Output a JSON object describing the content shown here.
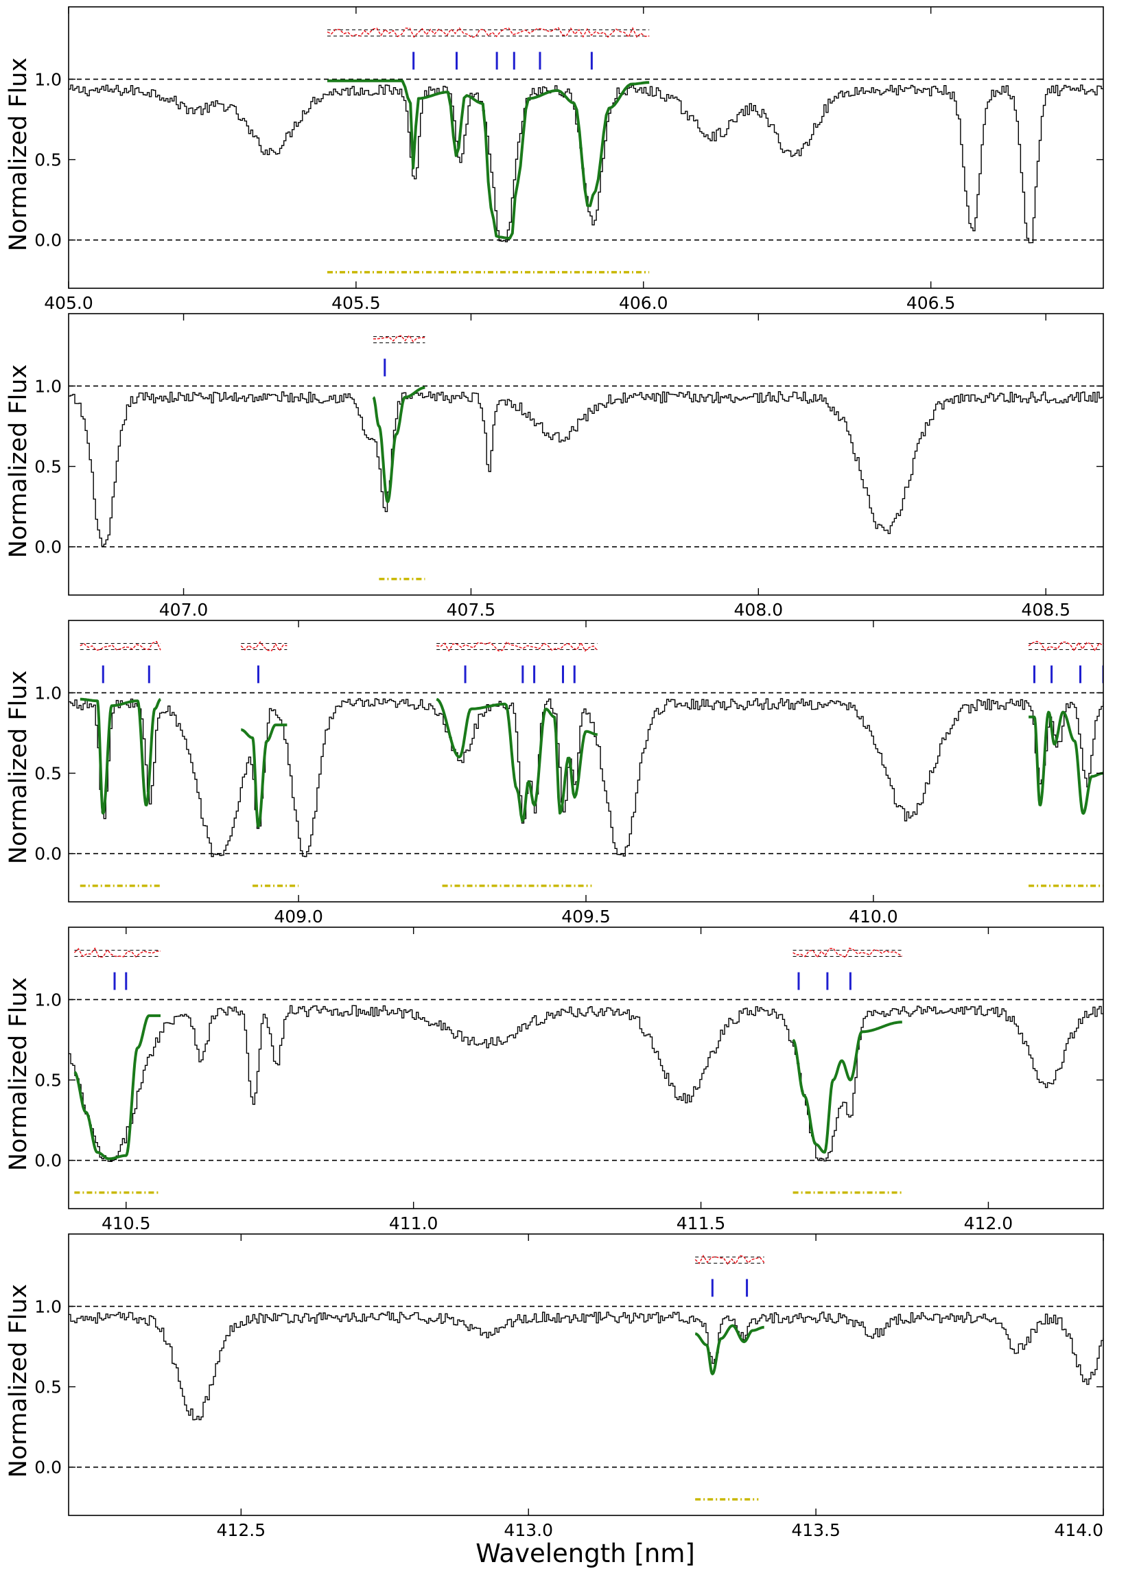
{
  "figure": {
    "x_axis_title": "Wavelength [nm]",
    "y_axis_title": "Normalized Flux"
  },
  "colors": {
    "spectrum": "#000000",
    "model": "#1a7a1a",
    "residual": "#e8151b",
    "line_marker": "#1f1fd0",
    "fit_region": "#c9b800",
    "reference": "#000000"
  },
  "chart_data": [
    {
      "type": "line",
      "xlim": [
        405.0,
        406.8
      ],
      "ylim": [
        -0.3,
        1.45
      ],
      "xticks": [
        "405.0",
        "405.5",
        "406.0",
        "406.5"
      ],
      "yticks": [
        "0.0",
        "0.5",
        "1.0"
      ],
      "reference_lines": [
        0.0,
        1.0
      ],
      "absorption_features": [
        {
          "center": 405.22,
          "depth": 0.12,
          "width": 0.035
        },
        {
          "center": 405.35,
          "depth": 0.38,
          "width": 0.04
        },
        {
          "center": 405.6,
          "depth": 0.58,
          "width": 0.007
        },
        {
          "center": 405.68,
          "depth": 0.48,
          "width": 0.008
        },
        {
          "center": 405.755,
          "depth": 0.99,
          "width": 0.018
        },
        {
          "center": 405.91,
          "depth": 0.82,
          "width": 0.016
        },
        {
          "center": 406.12,
          "depth": 0.28,
          "width": 0.04
        },
        {
          "center": 406.26,
          "depth": 0.4,
          "width": 0.035
        },
        {
          "center": 406.57,
          "depth": 0.88,
          "width": 0.013
        },
        {
          "center": 406.67,
          "depth": 0.97,
          "width": 0.012
        }
      ],
      "line_markers": [
        405.6,
        405.675,
        405.745,
        405.775,
        405.82,
        405.91
      ],
      "fit_region": [
        405.45,
        406.01
      ],
      "series": [
        {
          "kind": "model",
          "range": [
            405.45,
            406.01
          ],
          "points": [
            [
              405.45,
              0.99
            ],
            [
              405.58,
              0.99
            ],
            [
              405.595,
              0.85
            ],
            [
              405.6,
              0.43
            ],
            [
              405.607,
              0.88
            ],
            [
              405.66,
              0.92
            ],
            [
              405.675,
              0.52
            ],
            [
              405.69,
              0.9
            ],
            [
              405.72,
              0.85
            ],
            [
              405.735,
              0.2
            ],
            [
              405.745,
              0.02
            ],
            [
              405.77,
              0.01
            ],
            [
              405.78,
              0.35
            ],
            [
              405.8,
              0.88
            ],
            [
              405.85,
              0.93
            ],
            [
              405.88,
              0.85
            ],
            [
              405.905,
              0.2
            ],
            [
              405.915,
              0.3
            ],
            [
              405.94,
              0.82
            ],
            [
              405.98,
              0.97
            ],
            [
              406.01,
              0.98
            ]
          ]
        }
      ]
    },
    {
      "type": "line",
      "xlim": [
        406.8,
        408.6
      ],
      "ylim": [
        -0.3,
        1.45
      ],
      "xticks": [
        "407.0",
        "407.5",
        "408.0",
        "408.5"
      ],
      "yticks": [
        "0.0",
        "0.5",
        "1.0"
      ],
      "reference_lines": [
        0.0,
        1.0
      ],
      "absorption_features": [
        {
          "center": 406.86,
          "depth": 0.95,
          "width": 0.018
        },
        {
          "center": 407.32,
          "depth": 0.25,
          "width": 0.012
        },
        {
          "center": 407.35,
          "depth": 0.68,
          "width": 0.01
        },
        {
          "center": 407.53,
          "depth": 0.45,
          "width": 0.006
        },
        {
          "center": 407.65,
          "depth": 0.25,
          "width": 0.04
        },
        {
          "center": 408.22,
          "depth": 0.85,
          "width": 0.04
        }
      ],
      "line_markers": [
        407.35
      ],
      "fit_region": [
        407.34,
        407.42
      ],
      "series": [
        {
          "kind": "model",
          "range": [
            407.33,
            407.42
          ],
          "points": [
            [
              407.33,
              0.93
            ],
            [
              407.34,
              0.75
            ],
            [
              407.355,
              0.28
            ],
            [
              407.37,
              0.7
            ],
            [
              407.385,
              0.93
            ],
            [
              407.42,
              0.99
            ]
          ]
        }
      ]
    },
    {
      "type": "line",
      "xlim": [
        408.6,
        410.4
      ],
      "ylim": [
        -0.3,
        1.45
      ],
      "xticks": [
        "409.0",
        "409.5",
        "410.0"
      ],
      "yticks": [
        "0.0",
        "0.5",
        "1.0"
      ],
      "reference_lines": [
        0.0,
        1.0
      ],
      "absorption_features": [
        {
          "center": 408.66,
          "depth": 0.72,
          "width": 0.007
        },
        {
          "center": 408.74,
          "depth": 0.62,
          "width": 0.007
        },
        {
          "center": 408.86,
          "depth": 0.97,
          "width": 0.035
        },
        {
          "center": 408.93,
          "depth": 0.65,
          "width": 0.007
        },
        {
          "center": 409.01,
          "depth": 0.97,
          "width": 0.02
        },
        {
          "center": 409.28,
          "depth": 0.35,
          "width": 0.02
        },
        {
          "center": 409.39,
          "depth": 0.75,
          "width": 0.007
        },
        {
          "center": 409.41,
          "depth": 0.65,
          "width": 0.006
        },
        {
          "center": 409.46,
          "depth": 0.65,
          "width": 0.007
        },
        {
          "center": 409.48,
          "depth": 0.5,
          "width": 0.006
        },
        {
          "center": 409.56,
          "depth": 0.97,
          "width": 0.025
        },
        {
          "center": 410.06,
          "depth": 0.7,
          "width": 0.04
        },
        {
          "center": 410.29,
          "depth": 0.5,
          "width": 0.008
        },
        {
          "center": 410.32,
          "depth": 0.25,
          "width": 0.007
        },
        {
          "center": 410.37,
          "depth": 0.5,
          "width": 0.009
        }
      ],
      "line_markers": [
        408.66,
        408.74,
        408.93,
        409.29,
        409.39,
        409.41,
        409.46,
        409.48,
        410.28,
        410.31,
        410.36,
        410.4
      ],
      "fit_region": [
        408.62,
        408.76
      ],
      "extra_fit_regions": [
        [
          408.92,
          409.0
        ],
        [
          409.25,
          409.51
        ],
        [
          410.27,
          410.4
        ]
      ],
      "series": [
        {
          "kind": "model",
          "range": [
            408.62,
            408.76
          ],
          "points": [
            [
              408.62,
              0.96
            ],
            [
              408.65,
              0.95
            ],
            [
              408.66,
              0.25
            ],
            [
              408.675,
              0.92
            ],
            [
              408.72,
              0.95
            ],
            [
              408.735,
              0.3
            ],
            [
              408.75,
              0.9
            ],
            [
              408.76,
              0.96
            ]
          ]
        },
        {
          "kind": "model",
          "range": [
            408.9,
            408.98
          ],
          "points": [
            [
              408.9,
              0.77
            ],
            [
              408.92,
              0.72
            ],
            [
              408.93,
              0.17
            ],
            [
              408.945,
              0.7
            ],
            [
              408.96,
              0.8
            ],
            [
              408.98,
              0.8
            ]
          ]
        },
        {
          "kind": "model",
          "range": [
            409.24,
            409.52
          ],
          "points": [
            [
              409.24,
              0.96
            ],
            [
              409.28,
              0.6
            ],
            [
              409.3,
              0.9
            ],
            [
              409.36,
              0.93
            ],
            [
              409.38,
              0.4
            ],
            [
              409.39,
              0.2
            ],
            [
              409.4,
              0.45
            ],
            [
              409.41,
              0.3
            ],
            [
              409.43,
              0.9
            ],
            [
              409.445,
              0.85
            ],
            [
              409.455,
              0.25
            ],
            [
              409.47,
              0.6
            ],
            [
              409.48,
              0.35
            ],
            [
              409.5,
              0.76
            ],
            [
              409.52,
              0.74
            ]
          ]
        },
        {
          "kind": "model",
          "range": [
            410.27,
            410.4
          ],
          "points": [
            [
              410.27,
              0.85
            ],
            [
              410.28,
              0.85
            ],
            [
              410.29,
              0.3
            ],
            [
              410.305,
              0.88
            ],
            [
              410.315,
              0.68
            ],
            [
              410.33,
              0.88
            ],
            [
              410.35,
              0.7
            ],
            [
              410.365,
              0.25
            ],
            [
              410.38,
              0.48
            ],
            [
              410.4,
              0.5
            ]
          ]
        }
      ]
    },
    {
      "type": "line",
      "xlim": [
        410.4,
        412.2
      ],
      "ylim": [
        -0.3,
        1.45
      ],
      "xticks": [
        "410.5",
        "411.0",
        "411.5",
        "412.0"
      ],
      "yticks": [
        "0.0",
        "0.5",
        "1.0"
      ],
      "reference_lines": [
        0.0,
        1.0
      ],
      "absorption_features": [
        {
          "center": 410.47,
          "depth": 0.95,
          "width": 0.045
        },
        {
          "center": 410.63,
          "depth": 0.3,
          "width": 0.01
        },
        {
          "center": 410.72,
          "depth": 0.6,
          "width": 0.008
        },
        {
          "center": 410.76,
          "depth": 0.35,
          "width": 0.008
        },
        {
          "center": 411.12,
          "depth": 0.2,
          "width": 0.06
        },
        {
          "center": 411.47,
          "depth": 0.55,
          "width": 0.04
        },
        {
          "center": 411.71,
          "depth": 0.95,
          "width": 0.03
        },
        {
          "center": 411.76,
          "depth": 0.4,
          "width": 0.008
        },
        {
          "center": 412.1,
          "depth": 0.45,
          "width": 0.03
        }
      ],
      "line_markers": [
        410.48,
        410.5,
        411.67,
        411.72,
        411.76
      ],
      "fit_region": [
        410.41,
        410.56
      ],
      "extra_fit_regions": [
        [
          411.66,
          411.85
        ]
      ],
      "series": [
        {
          "kind": "model",
          "range": [
            410.41,
            410.56
          ],
          "points": [
            [
              410.41,
              0.55
            ],
            [
              410.43,
              0.3
            ],
            [
              410.45,
              0.05
            ],
            [
              410.47,
              0.01
            ],
            [
              410.5,
              0.03
            ],
            [
              410.52,
              0.7
            ],
            [
              410.54,
              0.9
            ],
            [
              410.56,
              0.9
            ]
          ]
        },
        {
          "kind": "model",
          "range": [
            411.66,
            411.85
          ],
          "points": [
            [
              411.66,
              0.75
            ],
            [
              411.68,
              0.4
            ],
            [
              411.7,
              0.1
            ],
            [
              411.715,
              0.05
            ],
            [
              411.73,
              0.5
            ],
            [
              411.745,
              0.62
            ],
            [
              411.76,
              0.5
            ],
            [
              411.78,
              0.8
            ],
            [
              411.85,
              0.86
            ]
          ]
        }
      ]
    },
    {
      "type": "line",
      "xlim": [
        412.2,
        414.0
      ],
      "ylim": [
        -0.3,
        1.45
      ],
      "xticks": [
        "412.5",
        "413.0",
        "413.5",
        "414.0"
      ],
      "yticks": [
        "0.0",
        "0.5",
        "1.0"
      ],
      "reference_lines": [
        0.0,
        1.0
      ],
      "absorption_features": [
        {
          "center": 412.42,
          "depth": 0.62,
          "width": 0.03
        },
        {
          "center": 412.92,
          "depth": 0.1,
          "width": 0.03
        },
        {
          "center": 413.32,
          "depth": 0.3,
          "width": 0.008
        },
        {
          "center": 413.37,
          "depth": 0.12,
          "width": 0.01
        },
        {
          "center": 413.6,
          "depth": 0.1,
          "width": 0.02
        },
        {
          "center": 413.85,
          "depth": 0.2,
          "width": 0.02
        },
        {
          "center": 413.97,
          "depth": 0.4,
          "width": 0.02
        }
      ],
      "line_markers": [
        413.32,
        413.38
      ],
      "fit_region": [
        413.29,
        413.4
      ],
      "series": [
        {
          "kind": "model",
          "range": [
            413.29,
            413.41
          ],
          "points": [
            [
              413.29,
              0.83
            ],
            [
              413.31,
              0.76
            ],
            [
              413.32,
              0.58
            ],
            [
              413.335,
              0.8
            ],
            [
              413.355,
              0.88
            ],
            [
              413.375,
              0.78
            ],
            [
              413.39,
              0.85
            ],
            [
              413.41,
              0.87
            ]
          ]
        }
      ]
    }
  ]
}
